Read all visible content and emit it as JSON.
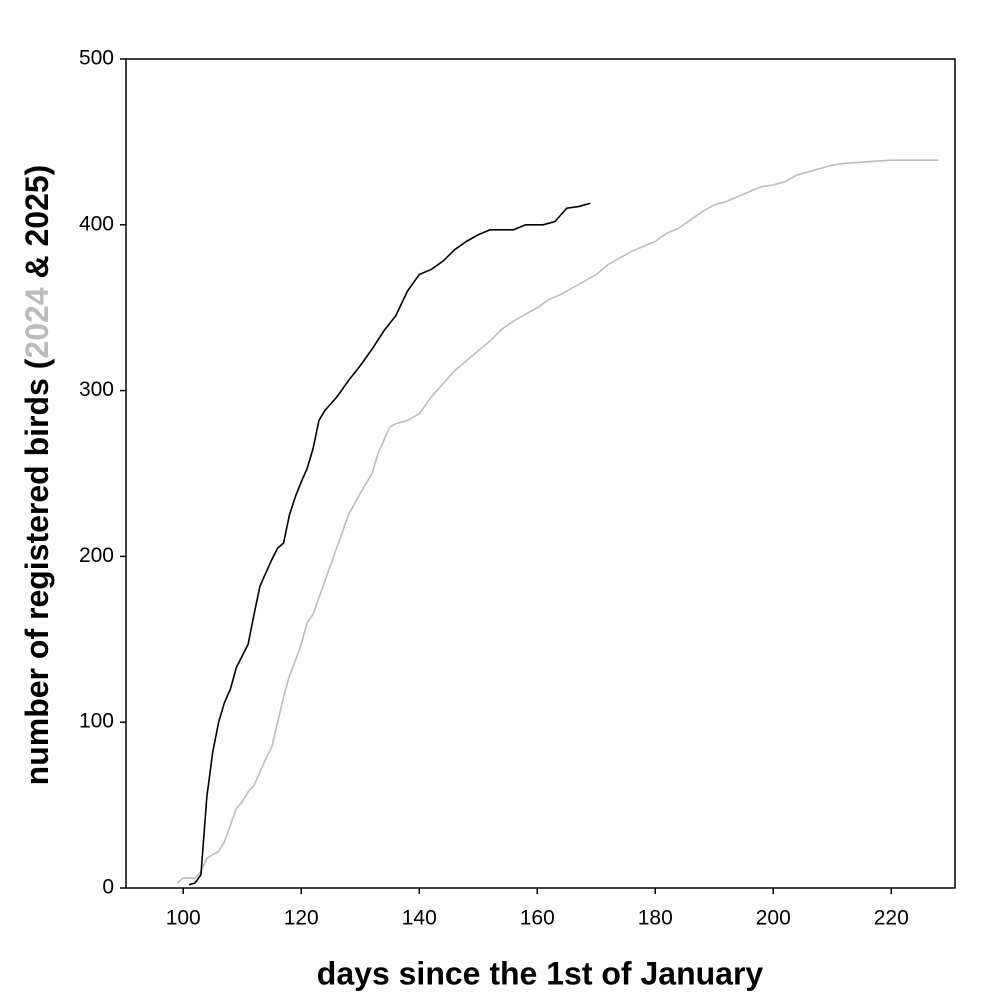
{
  "chart_data": {
    "type": "line",
    "xlabel": "days since the 1st of January",
    "ylabel_parts": [
      "number of registered birds (",
      " & ",
      ")"
    ],
    "xlim": [
      90.3,
      230.8
    ],
    "xticks": [
      100,
      120,
      140,
      160,
      180,
      200,
      220
    ],
    "ylim": [
      0,
      500
    ],
    "yticks": [
      0,
      100,
      200,
      300,
      400,
      500
    ],
    "grid": false,
    "series": [
      {
        "name": "2024",
        "color": "#bbbbbb",
        "x": [
          99,
          100,
          102,
          103,
          104,
          105,
          106,
          107,
          108,
          109,
          110,
          111,
          112,
          113,
          114,
          115,
          116,
          117,
          118,
          119,
          120,
          121,
          122,
          124,
          126,
          128,
          130,
          132,
          133,
          134,
          135,
          136,
          138,
          140,
          142,
          144,
          146,
          148,
          150,
          152,
          154,
          156,
          158,
          160,
          162,
          164,
          166,
          168,
          170,
          172,
          174,
          176,
          178,
          180,
          182,
          184,
          186,
          188,
          190,
          192,
          194,
          196,
          198,
          200,
          202,
          204,
          206,
          208,
          210,
          212,
          216,
          220,
          228
        ],
        "values": [
          3,
          6,
          6,
          10,
          18,
          20,
          22,
          28,
          38,
          48,
          52,
          58,
          62,
          70,
          78,
          85,
          100,
          115,
          128,
          137,
          147,
          160,
          165,
          185,
          205,
          225,
          238,
          250,
          262,
          270,
          278,
          280,
          282,
          286,
          296,
          304,
          312,
          318,
          324,
          330,
          337,
          342,
          346,
          350,
          355,
          358,
          362,
          366,
          370,
          376,
          380,
          384,
          387,
          390,
          395,
          398,
          403,
          408,
          412,
          414,
          417,
          420,
          423,
          424,
          426,
          430,
          432,
          434,
          436,
          437,
          438,
          439,
          439
        ]
      },
      {
        "name": "2025",
        "color": "#000000",
        "x": [
          101,
          102,
          103,
          104,
          105,
          106,
          107,
          108,
          109,
          110,
          111,
          112,
          113,
          114,
          115,
          116,
          117,
          118,
          119,
          120,
          121,
          122,
          123,
          124,
          126,
          128,
          130,
          132,
          134,
          136,
          138,
          140,
          142,
          144,
          146,
          148,
          150,
          152,
          156,
          158,
          161,
          163,
          165,
          167,
          169
        ],
        "values": [
          2,
          3,
          8,
          55,
          82,
          100,
          112,
          120,
          133,
          140,
          147,
          165,
          182,
          190,
          198,
          205,
          208,
          225,
          236,
          245,
          253,
          265,
          282,
          288,
          296,
          306,
          315,
          325,
          336,
          345,
          360,
          370,
          373,
          378,
          385,
          390,
          394,
          397,
          397,
          400,
          400,
          402,
          410,
          411,
          413
        ]
      }
    ]
  }
}
